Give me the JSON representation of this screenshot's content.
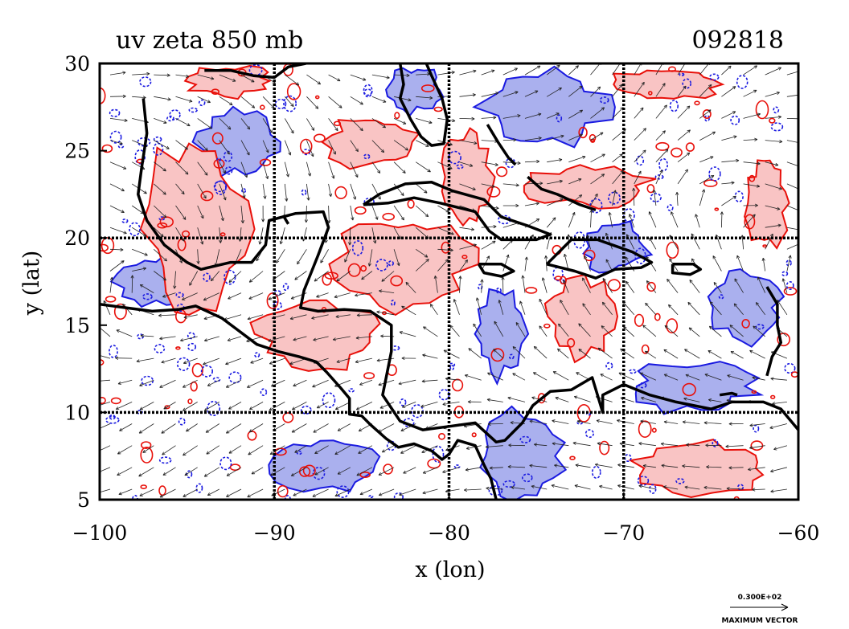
{
  "chart_data": {
    "type": "contour",
    "title": "uv zeta 850 mb",
    "time_label": "092818",
    "xlabel": "x (lon)",
    "ylabel": "y (lat)",
    "xlim": [
      -100,
      -60
    ],
    "ylim": [
      5,
      30
    ],
    "x_ticks": [
      -100,
      -90,
      -80,
      -70,
      -60
    ],
    "x_tick_labels": [
      "−100",
      "−90",
      "−80",
      "−70",
      "−60"
    ],
    "y_ticks": [
      5,
      10,
      15,
      20,
      25,
      30
    ],
    "y_tick_labels": [
      "5",
      "10",
      "15",
      "20",
      "25",
      "30"
    ],
    "grid_lon": [
      -90,
      -80,
      -70
    ],
    "grid_lat": [
      10,
      20
    ],
    "contour_colors": {
      "positive": "#e8100a",
      "negative": "#1a1ae0",
      "positive_fill": "#f9c4c4",
      "negative_fill": "#aab0ee"
    },
    "coastline_color": "#000000",
    "vector_legend": {
      "value": "0.300E+02",
      "label": "MAXIMUM VECTOR"
    },
    "positive_regions": [
      {
        "lon": -94.5,
        "lat": 20.5,
        "rlon": 3.0,
        "rlat": 5.5
      },
      {
        "lon": -82.5,
        "lat": 18.5,
        "rlon": 3.8,
        "rlat": 2.8
      },
      {
        "lon": -87.5,
        "lat": 14.5,
        "rlon": 3.5,
        "rlat": 2.0
      },
      {
        "lon": -84.5,
        "lat": 25.5,
        "rlon": 2.5,
        "rlat": 1.5
      },
      {
        "lon": -79.0,
        "lat": 23.5,
        "rlon": 1.5,
        "rlat": 3.0
      },
      {
        "lon": -72.0,
        "lat": 23.0,
        "rlon": 3.5,
        "rlat": 1.2
      },
      {
        "lon": -67.5,
        "lat": 28.8,
        "rlon": 3.2,
        "rlat": 1.0
      },
      {
        "lon": -65.5,
        "lat": 6.8,
        "rlon": 4.0,
        "rlat": 1.5
      },
      {
        "lon": -72.5,
        "lat": 15.5,
        "rlon": 2.0,
        "rlat": 2.5
      },
      {
        "lon": -61.8,
        "lat": 22.0,
        "rlon": 1.2,
        "rlat": 2.5
      },
      {
        "lon": -92.5,
        "lat": 29.0,
        "rlon": 2.5,
        "rlat": 0.9
      }
    ],
    "negative_regions": [
      {
        "lon": -92.0,
        "lat": 25.5,
        "rlon": 2.5,
        "rlat": 2.0
      },
      {
        "lon": -74.5,
        "lat": 27.5,
        "rlon": 3.5,
        "rlat": 2.2
      },
      {
        "lon": -76.0,
        "lat": 7.5,
        "rlon": 2.5,
        "rlat": 2.5
      },
      {
        "lon": -87.0,
        "lat": 7.0,
        "rlon": 3.0,
        "rlat": 1.6
      },
      {
        "lon": -66.0,
        "lat": 11.5,
        "rlon": 3.5,
        "rlat": 1.5
      },
      {
        "lon": -70.5,
        "lat": 19.5,
        "rlon": 2.0,
        "rlat": 1.5
      },
      {
        "lon": -96.5,
        "lat": 17.5,
        "rlon": 2.5,
        "rlat": 1.5
      },
      {
        "lon": -63.0,
        "lat": 16.0,
        "rlon": 2.0,
        "rlat": 2.0
      },
      {
        "lon": -82.0,
        "lat": 28.5,
        "rlon": 1.5,
        "rlat": 1.3
      },
      {
        "lon": -77.0,
        "lat": 14.5,
        "rlon": 1.5,
        "rlat": 2.5
      }
    ],
    "coastline": [
      [
        [
          -97.5,
          28.0
        ],
        [
          -97.3,
          26.0
        ],
        [
          -97.6,
          24.0
        ],
        [
          -97.8,
          22.5
        ],
        [
          -97.3,
          21.0
        ],
        [
          -96.3,
          19.6
        ],
        [
          -95.0,
          18.6
        ],
        [
          -94.2,
          18.2
        ],
        [
          -92.5,
          18.6
        ],
        [
          -91.3,
          18.6
        ],
        [
          -90.5,
          19.6
        ],
        [
          -90.3,
          21.0
        ],
        [
          -88.8,
          21.4
        ],
        [
          -87.2,
          21.5
        ],
        [
          -86.9,
          20.6
        ],
        [
          -87.5,
          19.0
        ],
        [
          -88.3,
          17.0
        ],
        [
          -88.5,
          16.0
        ],
        [
          -87.5,
          15.8
        ],
        [
          -86.0,
          15.9
        ],
        [
          -84.5,
          15.8
        ],
        [
          -83.3,
          15.0
        ],
        [
          -83.3,
          13.5
        ],
        [
          -83.6,
          12.0
        ],
        [
          -83.8,
          11.0
        ],
        [
          -82.8,
          9.5
        ],
        [
          -81.5,
          9.0
        ],
        [
          -80.0,
          9.2
        ],
        [
          -78.5,
          9.4
        ],
        [
          -77.3,
          8.3
        ],
        [
          -76.8,
          8.4
        ],
        [
          -75.8,
          9.4
        ],
        [
          -75.2,
          10.4
        ],
        [
          -74.2,
          11.2
        ],
        [
          -73.0,
          11.3
        ],
        [
          -71.8,
          12.0
        ],
        [
          -71.5,
          11.0
        ],
        [
          -71.2,
          10.0
        ],
        [
          -71.2,
          11.0
        ],
        [
          -70.0,
          11.6
        ],
        [
          -68.5,
          11.0
        ],
        [
          -67.0,
          10.6
        ],
        [
          -65.0,
          10.2
        ],
        [
          -63.8,
          10.6
        ],
        [
          -62.0,
          10.6
        ],
        [
          -61.0,
          10.2
        ],
        [
          -60.0,
          9.0
        ]
      ],
      [
        [
          -94.0,
          29.6
        ],
        [
          -92.5,
          29.6
        ],
        [
          -91.2,
          29.3
        ],
        [
          -90.0,
          29.2
        ],
        [
          -89.2,
          29.8
        ],
        [
          -88.2,
          30.0
        ]
      ],
      [
        [
          -100.0,
          16.2
        ],
        [
          -98.5,
          16.0
        ],
        [
          -97.0,
          15.8
        ],
        [
          -95.5,
          15.9
        ],
        [
          -94.5,
          16.1
        ],
        [
          -93.0,
          15.4
        ],
        [
          -92.2,
          14.8
        ],
        [
          -91.0,
          13.9
        ],
        [
          -89.8,
          13.5
        ],
        [
          -88.6,
          13.2
        ],
        [
          -87.6,
          12.9
        ],
        [
          -87.0,
          12.3
        ],
        [
          -86.2,
          11.4
        ],
        [
          -85.7,
          10.8
        ],
        [
          -85.7,
          9.9
        ],
        [
          -85.0,
          9.8
        ],
        [
          -84.5,
          9.3
        ],
        [
          -83.6,
          8.5
        ],
        [
          -82.9,
          8.0
        ],
        [
          -82.0,
          8.2
        ],
        [
          -81.0,
          7.8
        ],
        [
          -80.4,
          7.3
        ],
        [
          -80.0,
          7.6
        ],
        [
          -79.5,
          8.4
        ],
        [
          -78.5,
          8.1
        ],
        [
          -78.0,
          7.0
        ],
        [
          -77.6,
          6.2
        ],
        [
          -77.3,
          5.0
        ]
      ],
      [
        [
          -82.8,
          30.0
        ],
        [
          -82.6,
          28.8
        ],
        [
          -82.8,
          28.0
        ],
        [
          -82.2,
          26.8
        ],
        [
          -81.6,
          25.8
        ],
        [
          -81.0,
          25.3
        ],
        [
          -80.3,
          25.4
        ],
        [
          -80.1,
          26.8
        ],
        [
          -80.4,
          28.0
        ],
        [
          -81.0,
          29.3
        ],
        [
          -81.3,
          30.0
        ]
      ],
      [
        [
          -84.9,
          21.9
        ],
        [
          -84.0,
          22.5
        ],
        [
          -82.5,
          23.1
        ],
        [
          -81.0,
          23.2
        ],
        [
          -79.8,
          22.7
        ],
        [
          -78.0,
          22.2
        ],
        [
          -77.0,
          21.2
        ],
        [
          -75.5,
          20.7
        ],
        [
          -74.2,
          20.2
        ],
        [
          -75.0,
          19.9
        ],
        [
          -77.0,
          19.9
        ],
        [
          -77.7,
          20.4
        ],
        [
          -78.5,
          21.5
        ],
        [
          -80.5,
          22.0
        ],
        [
          -82.0,
          22.3
        ],
        [
          -83.5,
          22.0
        ],
        [
          -84.9,
          21.9
        ]
      ],
      [
        [
          -78.3,
          18.5
        ],
        [
          -77.0,
          18.5
        ],
        [
          -76.3,
          18.1
        ],
        [
          -77.0,
          17.8
        ],
        [
          -78.0,
          18.0
        ],
        [
          -78.3,
          18.5
        ]
      ],
      [
        [
          -74.4,
          18.5
        ],
        [
          -73.0,
          19.9
        ],
        [
          -71.5,
          19.9
        ],
        [
          -69.5,
          19.2
        ],
        [
          -68.4,
          18.6
        ],
        [
          -69.0,
          18.3
        ],
        [
          -70.5,
          18.2
        ],
        [
          -71.6,
          17.7
        ],
        [
          -72.8,
          18.1
        ],
        [
          -74.4,
          18.5
        ]
      ],
      [
        [
          -67.2,
          18.5
        ],
        [
          -66.0,
          18.5
        ],
        [
          -65.6,
          18.2
        ],
        [
          -66.2,
          17.9
        ],
        [
          -67.2,
          18.0
        ],
        [
          -67.2,
          18.5
        ]
      ],
      [
        [
          -77.8,
          26.5
        ],
        [
          -77.2,
          25.5
        ],
        [
          -76.6,
          24.6
        ],
        [
          -76.2,
          24.2
        ]
      ],
      [
        [
          -75.5,
          23.5
        ],
        [
          -74.7,
          22.8
        ],
        [
          -73.8,
          22.5
        ],
        [
          -72.5,
          21.9
        ],
        [
          -71.6,
          21.6
        ]
      ],
      [
        [
          -61.8,
          17.2
        ],
        [
          -61.2,
          16.2
        ],
        [
          -61.2,
          15.0
        ],
        [
          -61.0,
          14.0
        ],
        [
          -61.5,
          13.2
        ],
        [
          -61.8,
          12.1
        ]
      ],
      [
        [
          -89.2,
          20.8
        ],
        [
          -89.5,
          21.3
        ]
      ],
      [
        [
          -64.5,
          11.0
        ],
        [
          -63.8,
          11.1
        ],
        [
          -63.5,
          11.0
        ]
      ]
    ]
  }
}
